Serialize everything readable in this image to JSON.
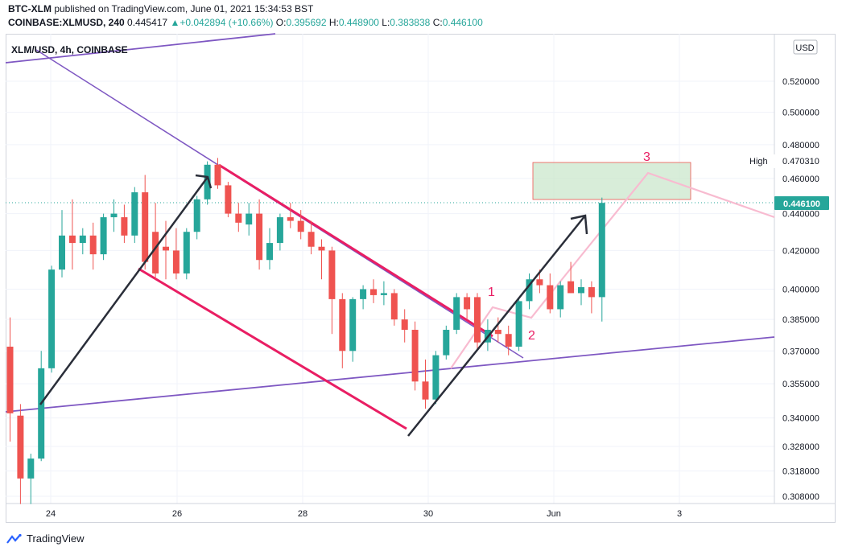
{
  "header": {
    "publisher": "BTC-XLM",
    "published_text": " published on TradingView.com, June 01, 2021 15:34:53 BST",
    "symbol_full": "COINBASE:XLMUSD, 240",
    "last": "0.445417",
    "change_arrow": "▲",
    "change": "+0.042894 (+10.66%)",
    "o_label": "O:",
    "o_value": "0.395692",
    "h_label": "H:",
    "h_value": "0.448900",
    "l_label": "L:",
    "l_value": "0.383838",
    "c_label": "C:",
    "c_value": "0.446100"
  },
  "chart": {
    "title": "XLM/USD, 4h, COINBASE",
    "currency": "USD",
    "high_label": "High",
    "high_value": "0.470310",
    "last_price_label": "0.446100",
    "annotations": [
      "1",
      "2",
      "3"
    ]
  },
  "footer": {
    "brand": "TradingView"
  },
  "colors": {
    "up": "#26a69a",
    "down": "#ef5350",
    "channel": "#e91e63",
    "trend": "#7e57c2",
    "arrow": "#2a2e39",
    "projection": "#f8bbd0",
    "target_fill": "#c8e6c9"
  },
  "chart_data": {
    "type": "candlestick",
    "title": "XLM/USD, 4h, COINBASE",
    "x_ticks": [
      "24",
      "26",
      "28",
      "30",
      "Jun",
      "3"
    ],
    "y_ticks": [
      "0.520000",
      "0.500000",
      "0.480000",
      "0.460000",
      "0.440000",
      "0.420000",
      "0.400000",
      "0.385000",
      "0.370000",
      "0.355000",
      "0.340000",
      "0.328000",
      "0.318000",
      "0.308000"
    ],
    "y_scale": "log",
    "ylim": [
      0.301,
      0.545
    ],
    "candles": [
      {
        "o": 0.372,
        "h": 0.386,
        "l": 0.33,
        "c": 0.342
      },
      {
        "o": 0.341,
        "h": 0.346,
        "l": 0.305,
        "c": 0.315
      },
      {
        "o": 0.315,
        "h": 0.325,
        "l": 0.305,
        "c": 0.323
      },
      {
        "o": 0.323,
        "h": 0.37,
        "l": 0.322,
        "c": 0.362
      },
      {
        "o": 0.362,
        "h": 0.412,
        "l": 0.36,
        "c": 0.41
      },
      {
        "o": 0.41,
        "h": 0.442,
        "l": 0.406,
        "c": 0.428
      },
      {
        "o": 0.428,
        "h": 0.448,
        "l": 0.41,
        "c": 0.424
      },
      {
        "o": 0.424,
        "h": 0.432,
        "l": 0.418,
        "c": 0.428
      },
      {
        "o": 0.428,
        "h": 0.435,
        "l": 0.41,
        "c": 0.418
      },
      {
        "o": 0.418,
        "h": 0.44,
        "l": 0.415,
        "c": 0.438
      },
      {
        "o": 0.438,
        "h": 0.448,
        "l": 0.43,
        "c": 0.44
      },
      {
        "o": 0.438,
        "h": 0.445,
        "l": 0.424,
        "c": 0.428
      },
      {
        "o": 0.428,
        "h": 0.455,
        "l": 0.424,
        "c": 0.452
      },
      {
        "o": 0.452,
        "h": 0.462,
        "l": 0.41,
        "c": 0.414
      },
      {
        "o": 0.43,
        "h": 0.446,
        "l": 0.405,
        "c": 0.408
      },
      {
        "o": 0.422,
        "h": 0.436,
        "l": 0.405,
        "c": 0.42
      },
      {
        "o": 0.42,
        "h": 0.432,
        "l": 0.405,
        "c": 0.408
      },
      {
        "o": 0.408,
        "h": 0.432,
        "l": 0.405,
        "c": 0.43
      },
      {
        "o": 0.43,
        "h": 0.45,
        "l": 0.426,
        "c": 0.448
      },
      {
        "o": 0.448,
        "h": 0.47,
        "l": 0.445,
        "c": 0.468
      },
      {
        "o": 0.468,
        "h": 0.472,
        "l": 0.454,
        "c": 0.456
      },
      {
        "o": 0.456,
        "h": 0.458,
        "l": 0.438,
        "c": 0.44
      },
      {
        "o": 0.44,
        "h": 0.446,
        "l": 0.43,
        "c": 0.435
      },
      {
        "o": 0.434,
        "h": 0.446,
        "l": 0.428,
        "c": 0.44
      },
      {
        "o": 0.44,
        "h": 0.448,
        "l": 0.41,
        "c": 0.415
      },
      {
        "o": 0.415,
        "h": 0.432,
        "l": 0.41,
        "c": 0.424
      },
      {
        "o": 0.424,
        "h": 0.44,
        "l": 0.42,
        "c": 0.438
      },
      {
        "o": 0.438,
        "h": 0.446,
        "l": 0.432,
        "c": 0.436
      },
      {
        "o": 0.436,
        "h": 0.442,
        "l": 0.426,
        "c": 0.43
      },
      {
        "o": 0.43,
        "h": 0.436,
        "l": 0.418,
        "c": 0.422
      },
      {
        "o": 0.422,
        "h": 0.426,
        "l": 0.405,
        "c": 0.42
      },
      {
        "o": 0.42,
        "h": 0.422,
        "l": 0.378,
        "c": 0.395
      },
      {
        "o": 0.395,
        "h": 0.398,
        "l": 0.362,
        "c": 0.37
      },
      {
        "o": 0.37,
        "h": 0.396,
        "l": 0.365,
        "c": 0.395
      },
      {
        "o": 0.395,
        "h": 0.402,
        "l": 0.39,
        "c": 0.4
      },
      {
        "o": 0.4,
        "h": 0.405,
        "l": 0.393,
        "c": 0.397
      },
      {
        "o": 0.397,
        "h": 0.404,
        "l": 0.392,
        "c": 0.398
      },
      {
        "o": 0.398,
        "h": 0.4,
        "l": 0.382,
        "c": 0.385
      },
      {
        "o": 0.385,
        "h": 0.39,
        "l": 0.374,
        "c": 0.38
      },
      {
        "o": 0.38,
        "h": 0.384,
        "l": 0.352,
        "c": 0.356
      },
      {
        "o": 0.356,
        "h": 0.366,
        "l": 0.344,
        "c": 0.348
      },
      {
        "o": 0.348,
        "h": 0.37,
        "l": 0.346,
        "c": 0.368
      },
      {
        "o": 0.368,
        "h": 0.382,
        "l": 0.366,
        "c": 0.38
      },
      {
        "o": 0.38,
        "h": 0.398,
        "l": 0.378,
        "c": 0.396
      },
      {
        "o": 0.396,
        "h": 0.398,
        "l": 0.385,
        "c": 0.39
      },
      {
        "o": 0.396,
        "h": 0.398,
        "l": 0.37,
        "c": 0.374
      },
      {
        "o": 0.374,
        "h": 0.385,
        "l": 0.37,
        "c": 0.38
      },
      {
        "o": 0.38,
        "h": 0.386,
        "l": 0.374,
        "c": 0.378
      },
      {
        "o": 0.378,
        "h": 0.382,
        "l": 0.368,
        "c": 0.372
      },
      {
        "o": 0.372,
        "h": 0.396,
        "l": 0.37,
        "c": 0.394
      },
      {
        "o": 0.394,
        "h": 0.408,
        "l": 0.39,
        "c": 0.405
      },
      {
        "o": 0.405,
        "h": 0.41,
        "l": 0.398,
        "c": 0.402
      },
      {
        "o": 0.402,
        "h": 0.408,
        "l": 0.388,
        "c": 0.39
      },
      {
        "o": 0.39,
        "h": 0.404,
        "l": 0.386,
        "c": 0.402
      },
      {
        "o": 0.404,
        "h": 0.414,
        "l": 0.398,
        "c": 0.398
      },
      {
        "o": 0.398,
        "h": 0.405,
        "l": 0.392,
        "c": 0.401
      },
      {
        "o": 0.401,
        "h": 0.404,
        "l": 0.388,
        "c": 0.396
      },
      {
        "o": 0.396,
        "h": 0.449,
        "l": 0.384,
        "c": 0.446
      }
    ]
  }
}
